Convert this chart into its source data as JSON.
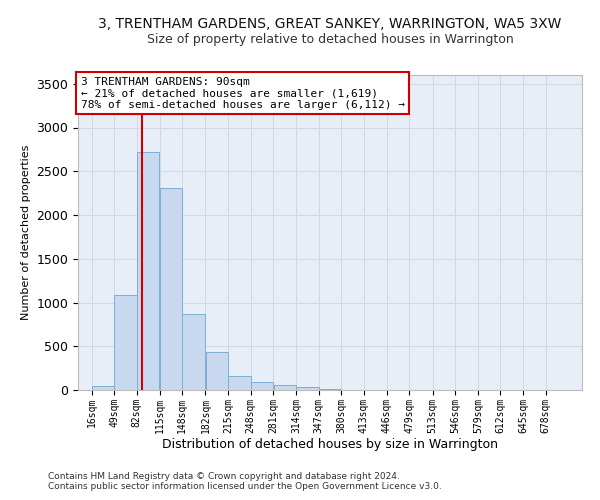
{
  "title": "3, TRENTHAM GARDENS, GREAT SANKEY, WARRINGTON, WA5 3XW",
  "subtitle": "Size of property relative to detached houses in Warrington",
  "xlabel": "Distribution of detached houses by size in Warrington",
  "ylabel": "Number of detached properties",
  "bar_color": "#c8d8ee",
  "bar_edgecolor": "#7bafd4",
  "annotation_line_color": "#cc0000",
  "annotation_box_edgecolor": "#cc0000",
  "annotation_text": "3 TRENTHAM GARDENS: 90sqm\n← 21% of detached houses are smaller (1,619)\n78% of semi-detached houses are larger (6,112) →",
  "property_line_x": 90,
  "footer1": "Contains HM Land Registry data © Crown copyright and database right 2024.",
  "footer2": "Contains public sector information licensed under the Open Government Licence v3.0.",
  "categories": [
    "16sqm",
    "49sqm",
    "82sqm",
    "115sqm",
    "148sqm",
    "182sqm",
    "215sqm",
    "248sqm",
    "281sqm",
    "314sqm",
    "347sqm",
    "380sqm",
    "413sqm",
    "446sqm",
    "479sqm",
    "513sqm",
    "546sqm",
    "579sqm",
    "612sqm",
    "645sqm",
    "678sqm"
  ],
  "bin_left_edges": [
    16,
    49,
    82,
    115,
    148,
    182,
    215,
    248,
    281,
    314,
    347,
    380,
    413,
    446,
    479,
    513,
    546,
    579,
    612,
    645,
    678
  ],
  "bin_width": 33,
  "values": [
    50,
    1090,
    2720,
    2310,
    870,
    430,
    155,
    90,
    60,
    40,
    10,
    5,
    0,
    0,
    0,
    0,
    0,
    0,
    0,
    0,
    0
  ],
  "ylim": [
    0,
    3600
  ],
  "yticks": [
    0,
    500,
    1000,
    1500,
    2000,
    2500,
    3000,
    3500
  ],
  "grid_color": "#d0d8e8",
  "plot_bg_color": "#e8eef8",
  "fig_bg_color": "#ffffff",
  "title_fontsize": 10,
  "subtitle_fontsize": 9,
  "ylabel_fontsize": 8,
  "xlabel_fontsize": 9,
  "ytick_fontsize": 9,
  "xtick_fontsize": 7,
  "footer_fontsize": 6.5
}
